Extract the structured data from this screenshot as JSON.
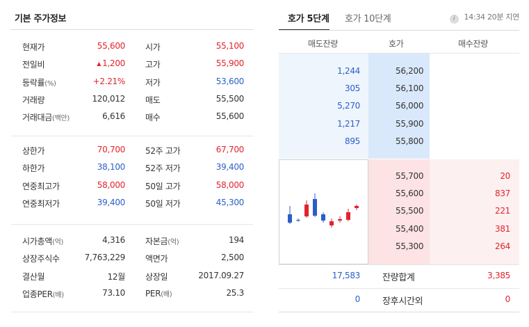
{
  "left": {
    "title": "기본 주가정보",
    "groups": [
      [
        {
          "l1": "현재가",
          "l1u": "",
          "v1": "55,600",
          "c1": "up",
          "l2": "시가",
          "l2u": "",
          "v2": "55,100",
          "c2": "up"
        },
        {
          "l1": "전일비",
          "l1u": "",
          "v1": "1,200",
          "c1": "up",
          "tri": "▲",
          "l2": "고가",
          "l2u": "",
          "v2": "55,900",
          "c2": "up"
        },
        {
          "l1": "등락률",
          "l1u": "(%)",
          "v1": "+2.21%",
          "c1": "up",
          "l2": "저가",
          "l2u": "",
          "v2": "53,600",
          "c2": "down"
        },
        {
          "l1": "거래량",
          "l1u": "",
          "v1": "120,012",
          "c1": "",
          "l2": "매도",
          "l2u": "",
          "v2": "55,500",
          "c2": ""
        },
        {
          "l1": "거래대금",
          "l1u": "(백만)",
          "v1": "6,616",
          "c1": "",
          "l2": "매수",
          "l2u": "",
          "v2": "55,600",
          "c2": ""
        }
      ],
      [
        {
          "l1": "상한가",
          "l1u": "",
          "v1": "70,700",
          "c1": "up",
          "l2": "52주 고가",
          "l2u": "",
          "v2": "67,700",
          "c2": "up"
        },
        {
          "l1": "하한가",
          "l1u": "",
          "v1": "38,100",
          "c1": "down",
          "l2": "52주 저가",
          "l2u": "",
          "v2": "39,400",
          "c2": "down"
        },
        {
          "l1": "연중최고가",
          "l1u": "",
          "v1": "58,000",
          "c1": "up",
          "l2": "50일 고가",
          "l2u": "",
          "v2": "58,000",
          "c2": "up"
        },
        {
          "l1": "연중최저가",
          "l1u": "",
          "v1": "39,400",
          "c1": "down",
          "l2": "50일 저가",
          "l2u": "",
          "v2": "45,300",
          "c2": "down"
        }
      ],
      [
        {
          "l1": "시가총액",
          "l1u": "(억)",
          "v1": "4,316",
          "c1": "",
          "l2": "자본금",
          "l2u": "(억)",
          "v2": "194",
          "c2": ""
        },
        {
          "l1": "상장주식수",
          "l1u": "",
          "v1": "7,763,229",
          "c1": "",
          "l2": "액면가",
          "l2u": "",
          "v2": "2,500",
          "c2": ""
        },
        {
          "l1": "결산월",
          "l1u": "",
          "v1": "12월",
          "c1": "",
          "l2": "상장일",
          "l2u": "",
          "v2": "2017.09.27",
          "c2": ""
        },
        {
          "l1": "업종PER",
          "l1u": "(배)",
          "v1": "73.10",
          "c1": "",
          "l2": "PER",
          "l2u": "(배)",
          "v2": "25.3",
          "c2": ""
        }
      ]
    ]
  },
  "right": {
    "tabs": [
      {
        "label": "호가 5단계",
        "active": true
      },
      {
        "label": "호가 10단계",
        "active": false
      }
    ],
    "info_icon": "i",
    "delay_text": "14:34 20분 지연",
    "headers": {
      "ask": "매도잔량",
      "price": "호가",
      "bid": "매수잔량"
    },
    "asks": [
      {
        "qty": "1,244",
        "price": "56,200"
      },
      {
        "qty": "305",
        "price": "56,100"
      },
      {
        "qty": "5,270",
        "price": "56,000"
      },
      {
        "qty": "1,217",
        "price": "55,900"
      },
      {
        "qty": "895",
        "price": "55,800"
      }
    ],
    "bids": [
      {
        "price": "55,700",
        "qty": "20"
      },
      {
        "price": "55,600",
        "qty": "837"
      },
      {
        "price": "55,500",
        "qty": "221"
      },
      {
        "price": "55,400",
        "qty": "381"
      },
      {
        "price": "55,300",
        "qty": "264"
      }
    ],
    "summary": [
      {
        "ask": "17,583",
        "label": "잔량합계",
        "bid": "3,385"
      },
      {
        "ask": "0",
        "label": "장후시간외",
        "bid": "0"
      }
    ],
    "colors": {
      "up": "#e0242e",
      "down": "#2a5ec9"
    }
  }
}
